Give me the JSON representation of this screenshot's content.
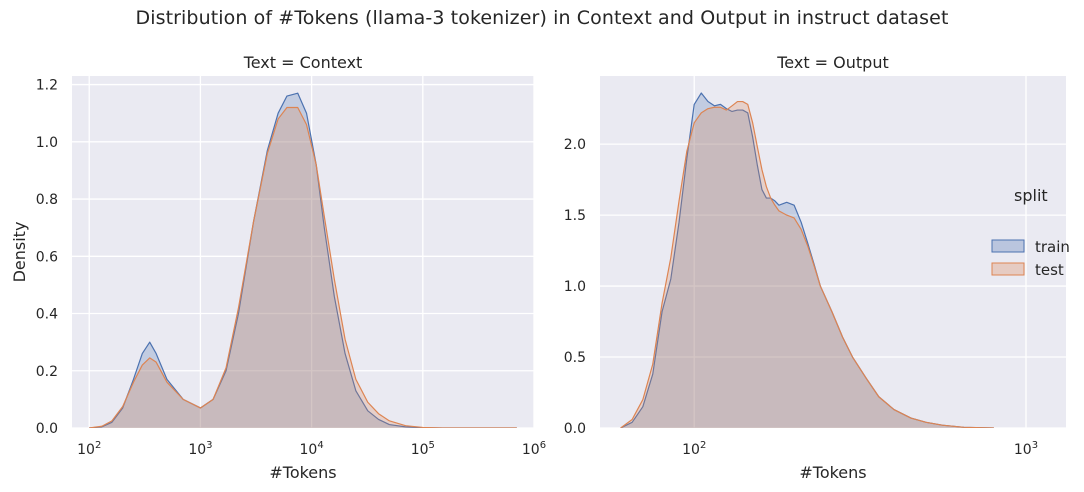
{
  "figure": {
    "title": "Distribution of #Tokens (llama-3 tokenizer) in Context and Output in instruct dataset"
  },
  "legend": {
    "title": "split",
    "placement": "right",
    "entries": [
      {
        "label": "train",
        "color": "#4c72b0"
      },
      {
        "label": "test",
        "color": "#dd8452"
      }
    ]
  },
  "colors": {
    "background": "#eaeaf2",
    "grid": "#ffffff",
    "train": "#4c72b0",
    "test": "#dd8452"
  },
  "chart_data": [
    {
      "type": "area",
      "title": "Text = Context",
      "xlabel": "#Tokens",
      "ylabel": "Density",
      "xscale": "log",
      "xlim": [
        70,
        1000000
      ],
      "ylim": [
        0,
        1.23
      ],
      "grid": true,
      "xticks": [
        {
          "value": 100,
          "label": "10^2"
        },
        {
          "value": 1000,
          "label": "10^3"
        },
        {
          "value": 10000,
          "label": "10^4"
        },
        {
          "value": 100000,
          "label": "10^5"
        },
        {
          "value": 1000000,
          "label": "10^6"
        }
      ],
      "yticks": [
        {
          "value": 0,
          "label": "0.0"
        },
        {
          "value": 0.2,
          "label": "0.2"
        },
        {
          "value": 0.4,
          "label": "0.4"
        },
        {
          "value": 0.6,
          "label": "0.6"
        },
        {
          "value": 0.8,
          "label": "0.8"
        },
        {
          "value": 1.0,
          "label": "1.0"
        },
        {
          "value": 1.2,
          "label": "1.2"
        }
      ],
      "series": [
        {
          "name": "train",
          "x": [
            100,
            130,
            160,
            200,
            250,
            300,
            350,
            400,
            500,
            700,
            1000,
            1300,
            1700,
            2200,
            3000,
            4000,
            5000,
            6000,
            7500,
            9000,
            11000,
            13000,
            16000,
            20000,
            25000,
            32000,
            40000,
            50000,
            70000,
            100000,
            150000,
            300000,
            700000
          ],
          "y": [
            0,
            0.004,
            0.02,
            0.07,
            0.17,
            0.26,
            0.3,
            0.26,
            0.17,
            0.1,
            0.07,
            0.1,
            0.2,
            0.4,
            0.72,
            0.97,
            1.1,
            1.16,
            1.17,
            1.1,
            0.92,
            0.7,
            0.46,
            0.26,
            0.13,
            0.06,
            0.03,
            0.012,
            0.004,
            0.001,
            0,
            0,
            0
          ]
        },
        {
          "name": "test",
          "x": [
            100,
            130,
            160,
            200,
            250,
            300,
            350,
            400,
            500,
            700,
            1000,
            1300,
            1700,
            2200,
            3000,
            4000,
            5000,
            6000,
            7500,
            9000,
            11000,
            13000,
            16000,
            20000,
            25000,
            32000,
            40000,
            50000,
            70000,
            100000,
            150000,
            300000,
            700000
          ],
          "y": [
            0,
            0.006,
            0.025,
            0.075,
            0.16,
            0.22,
            0.245,
            0.23,
            0.16,
            0.1,
            0.07,
            0.1,
            0.21,
            0.42,
            0.72,
            0.96,
            1.08,
            1.12,
            1.12,
            1.06,
            0.92,
            0.74,
            0.52,
            0.31,
            0.17,
            0.09,
            0.05,
            0.025,
            0.008,
            0.002,
            0,
            0,
            0
          ]
        }
      ]
    },
    {
      "type": "area",
      "title": "Text = Output",
      "xlabel": "#Tokens",
      "ylabel": "",
      "xscale": "log",
      "xlim": [
        52,
        1320
      ],
      "ylim": [
        0,
        2.48
      ],
      "grid": true,
      "xticks": [
        {
          "value": 100,
          "label": "10^2"
        },
        {
          "value": 1000,
          "label": "10^3"
        }
      ],
      "yticks": [
        {
          "value": 0,
          "label": "0.0"
        },
        {
          "value": 0.5,
          "label": "0.5"
        },
        {
          "value": 1.0,
          "label": "1.0"
        },
        {
          "value": 1.5,
          "label": "1.5"
        },
        {
          "value": 2.0,
          "label": "2.0"
        }
      ],
      "series": [
        {
          "name": "train",
          "x": [
            60,
            65,
            70,
            75,
            80,
            85,
            90,
            95,
            100,
            105,
            110,
            115,
            120,
            125,
            130,
            135,
            140,
            145,
            150,
            155,
            160,
            165,
            170,
            175,
            180,
            190,
            200,
            210,
            220,
            230,
            240,
            260,
            280,
            300,
            330,
            360,
            400,
            450,
            500,
            560,
            650,
            800
          ],
          "y": [
            0,
            0.04,
            0.15,
            0.38,
            0.82,
            1.05,
            1.45,
            1.9,
            2.28,
            2.36,
            2.3,
            2.27,
            2.28,
            2.25,
            2.23,
            2.24,
            2.24,
            2.22,
            2.05,
            1.85,
            1.68,
            1.62,
            1.62,
            1.6,
            1.57,
            1.59,
            1.57,
            1.45,
            1.3,
            1.15,
            1.0,
            0.82,
            0.64,
            0.5,
            0.35,
            0.22,
            0.13,
            0.07,
            0.04,
            0.02,
            0.005,
            0
          ]
        },
        {
          "name": "test",
          "x": [
            60,
            65,
            70,
            75,
            80,
            85,
            90,
            95,
            100,
            105,
            110,
            115,
            120,
            125,
            130,
            135,
            140,
            145,
            150,
            155,
            160,
            165,
            170,
            175,
            180,
            190,
            200,
            210,
            220,
            230,
            240,
            260,
            280,
            300,
            330,
            360,
            400,
            450,
            500,
            560,
            650,
            800
          ],
          "y": [
            0,
            0.06,
            0.2,
            0.45,
            0.88,
            1.2,
            1.6,
            1.95,
            2.15,
            2.22,
            2.25,
            2.26,
            2.26,
            2.24,
            2.27,
            2.3,
            2.3,
            2.28,
            2.15,
            1.98,
            1.82,
            1.7,
            1.62,
            1.57,
            1.53,
            1.5,
            1.48,
            1.4,
            1.28,
            1.14,
            1.0,
            0.82,
            0.64,
            0.5,
            0.35,
            0.22,
            0.13,
            0.07,
            0.04,
            0.02,
            0.005,
            0
          ]
        }
      ]
    }
  ]
}
